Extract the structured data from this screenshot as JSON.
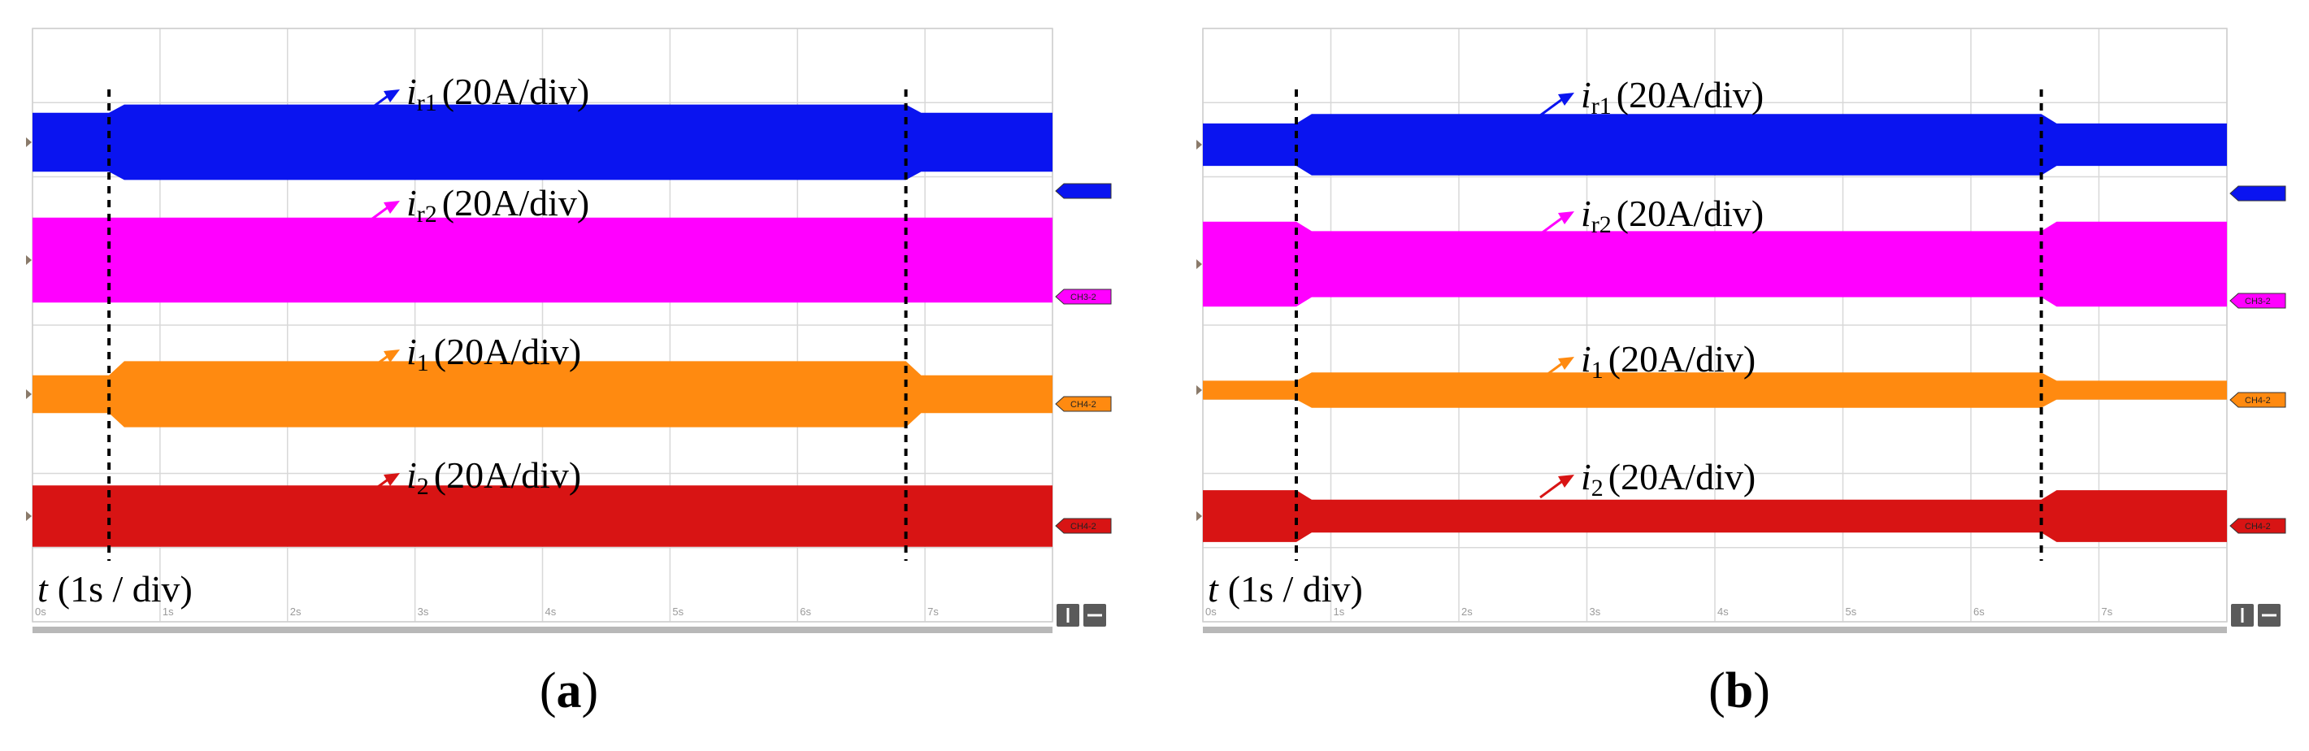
{
  "figure": {
    "tick_labels": [
      "0s",
      "1s",
      "2s",
      "3s",
      "4s",
      "5s",
      "6s",
      "7s"
    ]
  },
  "chart_data": [
    {
      "type": "line",
      "panel_label": "(a)",
      "xlabel": {
        "symbol": "t",
        "unit": "(1s / div)"
      },
      "x_unit": "s",
      "xlim": [
        0,
        8
      ],
      "xticks": [
        0,
        1,
        2,
        3,
        4,
        5,
        6,
        7
      ],
      "grid": true,
      "event_times_s": [
        0.6,
        6.85
      ],
      "series": [
        {
          "name": "i_r1",
          "symbol": "i",
          "sub": "r1",
          "scale": "(20A/div)",
          "color": "#0a14f0",
          "tag": "",
          "baseline": 0.5,
          "amp_normal": 0.25,
          "amp_event": 0.32
        },
        {
          "name": "i_r2",
          "symbol": "i",
          "sub": "r2",
          "scale": "(20A/div)",
          "color": "#ff00ff",
          "tag": "CH3-2",
          "baseline": 1.5,
          "amp_normal": 0.36,
          "amp_event": 0.36
        },
        {
          "name": "i_1",
          "symbol": "i",
          "sub": "1",
          "scale": "(20A/div)",
          "color": "#ff8a10",
          "tag": "CH4-2",
          "baseline": 2.5,
          "amp_normal": 0.16,
          "amp_event": 0.28
        },
        {
          "name": "i_2",
          "symbol": "i",
          "sub": "2",
          "scale": "(20A/div)",
          "color": "#d81414",
          "tag": "CH4-2",
          "baseline": 3.5,
          "amp_normal": 0.26,
          "amp_event": 0.26
        }
      ]
    },
    {
      "type": "line",
      "panel_label": "(b)",
      "xlabel": {
        "symbol": "t",
        "unit": "(1s / div)"
      },
      "x_unit": "s",
      "xlim": [
        0,
        8
      ],
      "xticks": [
        0,
        1,
        2,
        3,
        4,
        5,
        6,
        7
      ],
      "grid": true,
      "event_times_s": [
        0.73,
        6.55
      ],
      "series": [
        {
          "name": "i_r1",
          "symbol": "i",
          "sub": "r1",
          "scale": "(20A/div)",
          "color": "#0a14f0",
          "tag": "",
          "baseline": 0.5,
          "amp_normal": 0.18,
          "amp_event": 0.26
        },
        {
          "name": "i_r2",
          "symbol": "i",
          "sub": "r2",
          "scale": "(20A/div)",
          "color": "#ff00ff",
          "tag": "CH3-2",
          "baseline": 1.5,
          "amp_normal": 0.36,
          "amp_event": 0.28
        },
        {
          "name": "i_1",
          "symbol": "i",
          "sub": "1",
          "scale": "(20A/div)",
          "color": "#ff8a10",
          "tag": "CH4-2",
          "baseline": 2.5,
          "amp_normal": 0.08,
          "amp_event": 0.15
        },
        {
          "name": "i_2",
          "symbol": "i",
          "sub": "2",
          "scale": "(20A/div)",
          "color": "#d81414",
          "tag": "CH4-2",
          "baseline": 3.5,
          "amp_normal": 0.22,
          "amp_event": 0.14
        }
      ]
    }
  ]
}
